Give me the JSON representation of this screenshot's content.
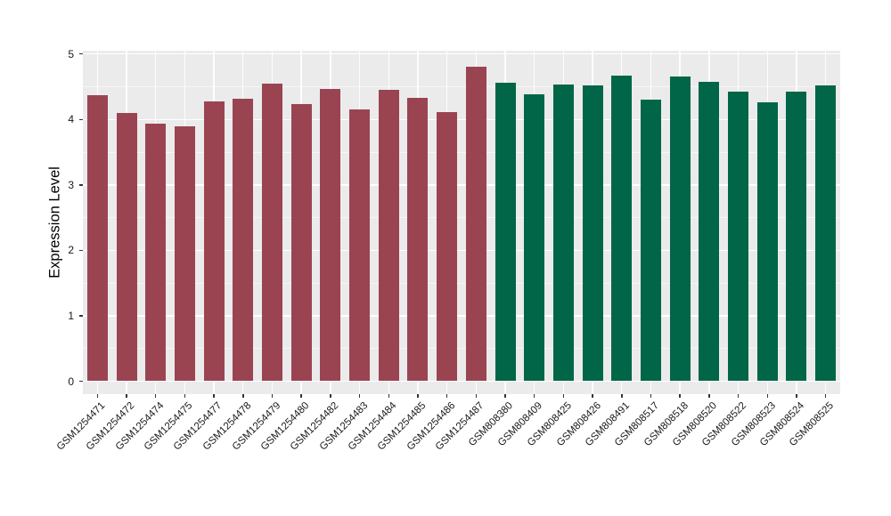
{
  "chart_data": {
    "type": "bar",
    "title": "",
    "xlabel": "",
    "ylabel": "Expression Level",
    "ylim": [
      0,
      5
    ],
    "yticks": [
      0,
      1,
      2,
      3,
      4,
      5
    ],
    "minor_grid_step": 0.5,
    "grid": "on",
    "legend_position": "none",
    "panel_background": "#EBEBEB",
    "grid_color": "#FFFFFF",
    "tick_color": "#333333",
    "tick_label_color": "#1A1A1A",
    "series": [
      {
        "name": "maroon-bars",
        "color": "#9A4452",
        "categories": [
          "GSM1254471",
          "GSM1254472",
          "GSM1254474",
          "GSM1254475",
          "GSM1254477",
          "GSM1254478",
          "GSM1254479",
          "GSM1254480",
          "GSM1254482",
          "GSM1254483",
          "GSM1254484",
          "GSM1254485",
          "GSM1254486",
          "GSM1254487"
        ],
        "values": [
          4.37,
          4.1,
          3.93,
          3.9,
          4.28,
          4.32,
          4.55,
          4.23,
          4.47,
          4.15,
          4.45,
          4.33,
          4.11,
          4.81
        ]
      },
      {
        "name": "green-bars",
        "color": "#006647",
        "categories": [
          "GSM808380",
          "GSM808409",
          "GSM808425",
          "GSM808426",
          "GSM808491",
          "GSM808517",
          "GSM808518",
          "GSM808520",
          "GSM808522",
          "GSM808523",
          "GSM808524",
          "GSM808525"
        ],
        "values": [
          4.56,
          4.38,
          4.54,
          4.52,
          4.67,
          4.3,
          4.66,
          4.57,
          4.43,
          4.26,
          4.42,
          4.52
        ]
      }
    ]
  }
}
